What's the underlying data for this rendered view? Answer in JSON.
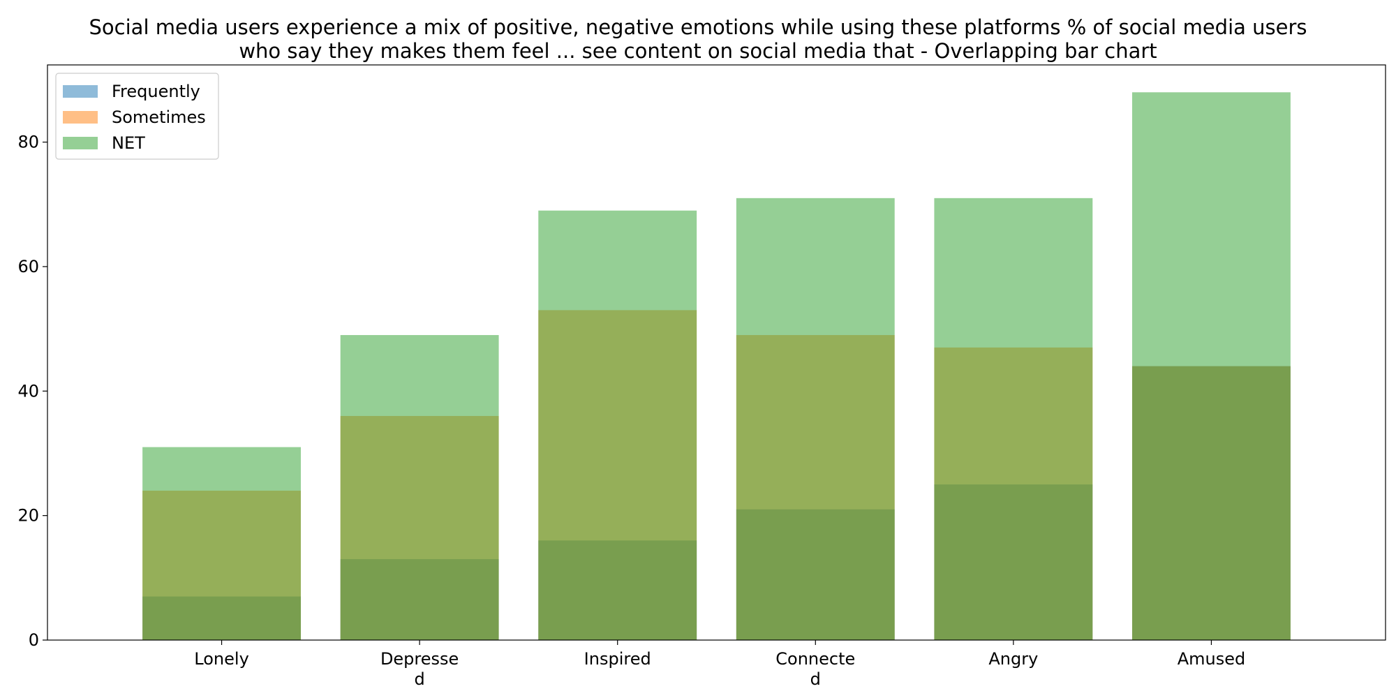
{
  "chart_data": {
    "type": "bar",
    "title": "Social media users experience a mix of positive, negative emotions while using these platforms % of social media users who say they makes them feel ... see content on social media that  - Overlapping bar chart",
    "title_lines": [
      "Social media users experience a mix of positive, negative emotions while using these platforms % of social media users",
      "who say they makes them feel ... see content on social media that  - Overlapping bar chart"
    ],
    "categories": [
      "Lonely",
      "Depressed",
      "Inspired",
      "Connected",
      "Angry",
      "Amused"
    ],
    "category_tick_lines": [
      [
        "Lonely"
      ],
      [
        "Depresse",
        "d"
      ],
      [
        "Inspired"
      ],
      [
        "Connecte",
        "d"
      ],
      [
        "Angry"
      ],
      [
        "Amused"
      ]
    ],
    "series": [
      {
        "name": "Frequently",
        "values": [
          7,
          13,
          16,
          21,
          25,
          44
        ],
        "color": "#1f77b4"
      },
      {
        "name": "Sometimes",
        "values": [
          24,
          36,
          53,
          49,
          47,
          44
        ],
        "color": "#ff7f0e"
      },
      {
        "name": "NET",
        "values": [
          31,
          49,
          69,
          71,
          71,
          88
        ],
        "color": "#2ca02c"
      }
    ],
    "bar_opacity": 0.5,
    "overlapping": true,
    "ylim": [
      0,
      92.4
    ],
    "yticks": [
      0,
      20,
      40,
      60,
      80
    ],
    "xlabel": "",
    "ylabel": "",
    "grid": false,
    "legend_position": "top-left"
  }
}
